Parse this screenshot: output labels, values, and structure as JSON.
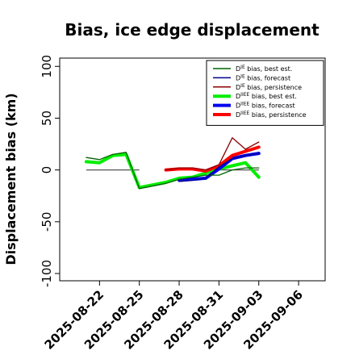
{
  "chart_data": {
    "type": "line",
    "title": "Bias, ice edge displacement",
    "xlabel": "",
    "ylabel": "Displacement bias (km)",
    "ylim": [
      -107,
      108
    ],
    "yticks": [
      -100,
      -50,
      0,
      50,
      100
    ],
    "ytick_labels": [
      "-100",
      "-50",
      "0",
      "50",
      "100"
    ],
    "xlim": [
      "2025-08-19",
      "2025-09-08"
    ],
    "xticks": [
      "2025-08-22",
      "2025-08-25",
      "2025-08-28",
      "2025-08-31",
      "2025-09-03",
      "2025-09-06"
    ],
    "xtick_labels": [
      "2025-08-22",
      "2025-08-25",
      "2025-08-28",
      "2025-08-31",
      "2025-09-03",
      "2025-09-06"
    ],
    "highlighted_xtick": "2025-08-28",
    "highlight_color": "#228b22",
    "legend_position": "top-right",
    "reference_line": {
      "color": "#555555",
      "segments": [
        {
          "x": [
            "2025-08-21",
            "2025-08-22",
            "2025-08-23",
            "2025-08-24",
            "2025-08-25"
          ],
          "y": [
            0,
            0,
            0,
            0,
            0
          ]
        },
        {
          "x": [
            "2025-08-30",
            "2025-08-31",
            "2025-09-01",
            "2025-09-02",
            "2025-09-03"
          ],
          "y": [
            0,
            0,
            0,
            0,
            0
          ]
        }
      ]
    },
    "series": [
      {
        "name": "D^IE bias, best est.",
        "legend_main": "D",
        "legend_sup": "IE",
        "legend_rest": " bias, best est.",
        "color": "#006400",
        "width": 1.3,
        "x": [
          "2025-08-21",
          "2025-08-22",
          "2025-08-23",
          "2025-08-24",
          "2025-08-25",
          "2025-08-27",
          "2025-08-28",
          "2025-08-29",
          "2025-08-30",
          "2025-08-31",
          "2025-09-01",
          "2025-09-02",
          "2025-09-03"
        ],
        "y": [
          12,
          10,
          15,
          17,
          -18,
          -13,
          -9,
          -7,
          -5,
          -5,
          0,
          2,
          2
        ]
      },
      {
        "name": "D^IE bias, forecast",
        "legend_main": "D",
        "legend_sup": "IE",
        "legend_rest": " bias, forecast",
        "color": "#00008b",
        "width": 1.3,
        "x": [
          "2025-08-28",
          "2025-08-29",
          "2025-08-30",
          "2025-08-31",
          "2025-09-01",
          "2025-09-02",
          "2025-09-03"
        ],
        "y": [
          -11,
          -10,
          -8,
          3,
          11,
          14,
          16
        ]
      },
      {
        "name": "D^IE bias, persistence",
        "legend_main": "D",
        "legend_sup": "IE",
        "legend_rest": " bias, persistence",
        "color": "#8b0000",
        "width": 1.3,
        "x": [
          "2025-08-27",
          "2025-08-28",
          "2025-08-29",
          "2025-08-30",
          "2025-08-31",
          "2025-09-01",
          "2025-09-02",
          "2025-09-03"
        ],
        "y": [
          0,
          2,
          2,
          0,
          5,
          31,
          20,
          27
        ]
      },
      {
        "name": "D^IIEE bias, best est.",
        "legend_main": "D",
        "legend_sup": "IIEE",
        "legend_rest": " bias, best est.",
        "color": "#00ee00",
        "width": 4,
        "x": [
          "2025-08-21",
          "2025-08-22",
          "2025-08-23",
          "2025-08-24",
          "2025-08-25",
          "2025-08-27",
          "2025-08-28",
          "2025-08-29",
          "2025-08-30",
          "2025-08-31",
          "2025-09-01",
          "2025-09-02",
          "2025-09-03"
        ],
        "y": [
          8,
          7,
          14,
          15,
          -17,
          -12,
          -8,
          -7,
          -3,
          1,
          4,
          7,
          -7
        ]
      },
      {
        "name": "D^IIEE bias, forecast",
        "legend_main": "D",
        "legend_sup": "IIEE",
        "legend_rest": " bias, forecast",
        "color": "#0000ee",
        "width": 4,
        "x": [
          "2025-08-28",
          "2025-08-29",
          "2025-08-30",
          "2025-08-31",
          "2025-09-01",
          "2025-09-02",
          "2025-09-03"
        ],
        "y": [
          -10,
          -9,
          -8,
          1,
          11,
          14,
          16
        ]
      },
      {
        "name": "D^IIEE bias, persistence",
        "legend_main": "D",
        "legend_sup": "IIEE",
        "legend_rest": " bias, persistence",
        "color": "#ff0000",
        "width": 4,
        "x": [
          "2025-08-27",
          "2025-08-28",
          "2025-08-29",
          "2025-08-30",
          "2025-08-31",
          "2025-09-01",
          "2025-09-02",
          "2025-09-03"
        ],
        "y": [
          0,
          1,
          1,
          -1,
          4,
          14,
          18,
          22
        ]
      }
    ]
  }
}
